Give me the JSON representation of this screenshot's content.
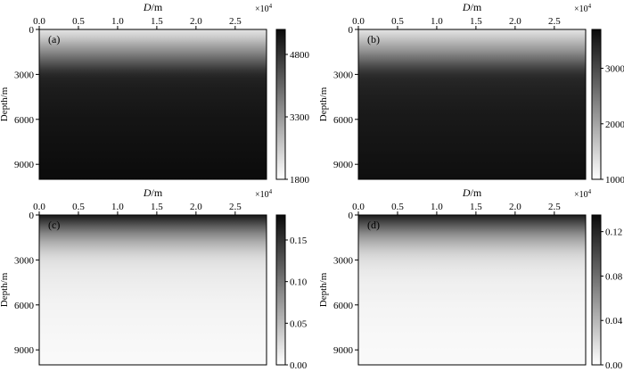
{
  "chart_data": [
    {
      "id": "a",
      "type": "heatmap",
      "panel_label": "(a)",
      "xlabel_italic": "D",
      "xlabel_unit": "/m",
      "ylabel": "Depth/m",
      "x_ticks": [
        "0.0",
        "0.5",
        "1.0",
        "1.5",
        "2.0",
        "2.5"
      ],
      "x_tick_values": [
        0,
        0.5,
        1.0,
        1.5,
        2.0,
        2.5
      ],
      "x_multiplier": "×10",
      "x_multiplier_exp": "4",
      "xlim": [
        0,
        2.9
      ],
      "y_ticks": [
        "0",
        "3000",
        "6000",
        "9000"
      ],
      "y_tick_values": [
        0,
        3000,
        6000,
        9000
      ],
      "ylim": [
        0,
        10000
      ],
      "colorbar_ticks": [
        "4800",
        "3300",
        "1800"
      ],
      "colorbar_tick_values": [
        4800,
        3300,
        1800
      ],
      "color_range": [
        1800,
        5400
      ],
      "colormap": "gray_reversed",
      "profile": {
        "depth": [
          0,
          300,
          600,
          900,
          1200,
          1500,
          1800,
          2100,
          2400,
          2700,
          3000,
          3300,
          3600,
          4200,
          5000,
          6000,
          7500,
          9000,
          10000
        ],
        "value": [
          2200,
          2400,
          2650,
          2950,
          3250,
          3550,
          3850,
          4150,
          4450,
          4750,
          4950,
          5050,
          5100,
          5150,
          5200,
          5250,
          5300,
          5350,
          5380
        ]
      }
    },
    {
      "id": "b",
      "type": "heatmap",
      "panel_label": "(b)",
      "xlabel_italic": "D",
      "xlabel_unit": "/m",
      "ylabel": "Depth/m",
      "x_ticks": [
        "0.0",
        "0.5",
        "1.0",
        "1.5",
        "2.0",
        "2.5"
      ],
      "x_tick_values": [
        0,
        0.5,
        1.0,
        1.5,
        2.0,
        2.5
      ],
      "x_multiplier": "×10",
      "x_multiplier_exp": "4",
      "xlim": [
        0,
        2.9
      ],
      "y_ticks": [
        "0",
        "3000",
        "6000",
        "9000"
      ],
      "y_tick_values": [
        0,
        3000,
        6000,
        9000
      ],
      "ylim": [
        0,
        10000
      ],
      "colorbar_ticks": [
        "3000",
        "2000",
        "1000"
      ],
      "colorbar_tick_values": [
        3000,
        2000,
        1000
      ],
      "color_range": [
        1000,
        3700
      ],
      "colormap": "gray_reversed",
      "profile": {
        "depth": [
          0,
          300,
          600,
          900,
          1200,
          1500,
          1800,
          2100,
          2400,
          2700,
          3000,
          3300,
          3600,
          4200,
          5000,
          6000,
          7500,
          9000,
          10000
        ],
        "value": [
          1300,
          1450,
          1650,
          1850,
          2050,
          2250,
          2500,
          2700,
          2950,
          3150,
          3300,
          3380,
          3420,
          3460,
          3500,
          3540,
          3580,
          3620,
          3650
        ]
      }
    },
    {
      "id": "c",
      "type": "heatmap",
      "panel_label": "(c)",
      "xlabel_italic": "D",
      "xlabel_unit": "/m",
      "ylabel": "Depth/m",
      "x_ticks": [
        "0.0",
        "0.5",
        "1.0",
        "1.5",
        "2.0",
        "2.5"
      ],
      "x_tick_values": [
        0,
        0.5,
        1.0,
        1.5,
        2.0,
        2.5
      ],
      "x_multiplier": "×10",
      "x_multiplier_exp": "4",
      "xlim": [
        0,
        2.9
      ],
      "y_ticks": [
        "0",
        "3000",
        "6000",
        "9000"
      ],
      "y_tick_values": [
        0,
        3000,
        6000,
        9000
      ],
      "ylim": [
        0,
        10000
      ],
      "colorbar_ticks": [
        "0.15",
        "0.10",
        "0.05",
        "0.00"
      ],
      "colorbar_tick_values": [
        0.15,
        0.1,
        0.05,
        0.0
      ],
      "color_range": [
        0,
        0.18
      ],
      "colormap": "gray_reversed",
      "profile": {
        "depth": [
          0,
          300,
          600,
          900,
          1200,
          1500,
          1800,
          2100,
          2400,
          2700,
          3000,
          3600,
          4500,
          6000,
          8000,
          10000
        ],
        "value": [
          0.17,
          0.15,
          0.13,
          0.11,
          0.09,
          0.075,
          0.06,
          0.048,
          0.038,
          0.03,
          0.024,
          0.018,
          0.013,
          0.009,
          0.006,
          0.004
        ]
      }
    },
    {
      "id": "d",
      "type": "heatmap",
      "panel_label": "(d)",
      "xlabel_italic": "D",
      "xlabel_unit": "/m",
      "ylabel": "Depth/m",
      "x_ticks": [
        "0.0",
        "0.5",
        "1.0",
        "1.5",
        "2.0",
        "2.5"
      ],
      "x_tick_values": [
        0,
        0.5,
        1.0,
        1.5,
        2.0,
        2.5
      ],
      "x_multiplier": "×10",
      "x_multiplier_exp": "4",
      "xlim": [
        0,
        2.9
      ],
      "y_ticks": [
        "0",
        "3000",
        "6000",
        "9000"
      ],
      "y_tick_values": [
        0,
        3000,
        6000,
        9000
      ],
      "ylim": [
        0,
        10000
      ],
      "colorbar_ticks": [
        "0.12",
        "0.08",
        "0.04",
        "0.00"
      ],
      "colorbar_tick_values": [
        0.12,
        0.08,
        0.04,
        0.0
      ],
      "color_range": [
        0,
        0.135
      ],
      "colormap": "gray_reversed",
      "profile": {
        "depth": [
          0,
          300,
          600,
          900,
          1200,
          1500,
          1800,
          2100,
          2400,
          2700,
          3000,
          3600,
          4500,
          6000,
          8000,
          10000
        ],
        "value": [
          0.125,
          0.11,
          0.095,
          0.08,
          0.066,
          0.054,
          0.044,
          0.035,
          0.028,
          0.022,
          0.018,
          0.013,
          0.009,
          0.006,
          0.004,
          0.003
        ]
      }
    }
  ]
}
